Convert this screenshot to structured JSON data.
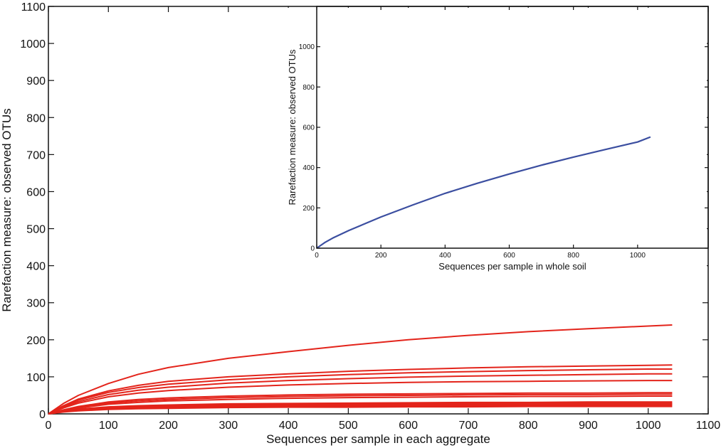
{
  "chart_data": [
    {
      "type": "line",
      "xlabel": "Sequences per sample in each aggregate",
      "ylabel": "Rarefaction measure: observed OTUs",
      "xlim": [
        0,
        1100
      ],
      "ylim": [
        0,
        1100
      ],
      "xticks": [
        0,
        100,
        200,
        300,
        400,
        500,
        600,
        700,
        800,
        900,
        1000,
        1100
      ],
      "yticks": [
        0,
        100,
        200,
        300,
        400,
        500,
        600,
        700,
        800,
        900,
        1000,
        1100
      ],
      "color": "#e3241b",
      "x": [
        0,
        25,
        50,
        100,
        150,
        200,
        300,
        400,
        500,
        600,
        700,
        800,
        900,
        1000,
        1040
      ],
      "series": [
        {
          "values": [
            0,
            28,
            50,
            82,
            107,
            125,
            150,
            168,
            185,
            200,
            212,
            222,
            230,
            237,
            240
          ]
        },
        {
          "values": [
            0,
            22,
            40,
            62,
            77,
            88,
            100,
            108,
            115,
            120,
            124,
            127,
            129,
            131,
            132
          ]
        },
        {
          "values": [
            0,
            20,
            37,
            58,
            71,
            80,
            92,
            100,
            106,
            111,
            114,
            117,
            119,
            121,
            121
          ]
        },
        {
          "values": [
            0,
            18,
            33,
            52,
            64,
            72,
            83,
            90,
            95,
            99,
            102,
            104,
            106,
            108,
            108
          ]
        },
        {
          "values": [
            0,
            16,
            29,
            46,
            56,
            63,
            72,
            78,
            82,
            85,
            87,
            88,
            89,
            90,
            90
          ]
        },
        {
          "values": [
            0,
            11,
            20,
            32,
            39,
            43,
            48,
            51,
            53,
            54,
            55,
            56,
            56,
            57,
            57
          ]
        },
        {
          "values": [
            0,
            10,
            18,
            29,
            35,
            39,
            44,
            47,
            49,
            50,
            51,
            52,
            52,
            53,
            53
          ]
        },
        {
          "values": [
            0,
            9,
            16,
            26,
            31,
            35,
            39,
            42,
            44,
            45,
            46,
            47,
            47,
            48,
            48
          ]
        },
        {
          "values": [
            0,
            8,
            13,
            19,
            22,
            24,
            27,
            28,
            29,
            30,
            31,
            31,
            32,
            32,
            32
          ]
        },
        {
          "values": [
            0,
            7,
            12,
            17,
            20,
            22,
            25,
            26,
            27,
            28,
            28,
            29,
            29,
            29,
            29
          ]
        },
        {
          "values": [
            0,
            7,
            11,
            16,
            19,
            21,
            23,
            24,
            25,
            26,
            26,
            27,
            27,
            27,
            27
          ]
        },
        {
          "values": [
            0,
            6,
            10,
            15,
            17,
            19,
            21,
            22,
            23,
            24,
            24,
            25,
            25,
            25,
            25
          ]
        },
        {
          "values": [
            0,
            6,
            9,
            13,
            15,
            17,
            19,
            20,
            21,
            21,
            22,
            22,
            22,
            22,
            22
          ]
        },
        {
          "values": [
            0,
            5,
            8,
            12,
            14,
            15,
            17,
            18,
            18,
            19,
            19,
            20,
            20,
            20,
            20
          ]
        }
      ]
    },
    {
      "type": "line",
      "xlabel": "Sequences per sample in whole soil",
      "ylabel": "Rarefaction measure: observed OTUs",
      "xlim": [
        0,
        1220
      ],
      "ylim": [
        0,
        1200
      ],
      "xticks": [
        0,
        200,
        400,
        600,
        800,
        1000
      ],
      "yticks": [
        0,
        200,
        400,
        600,
        800,
        1000
      ],
      "color": "#3b4ea0",
      "x": [
        0,
        25,
        50,
        100,
        200,
        300,
        400,
        500,
        600,
        700,
        800,
        900,
        1000,
        1040
      ],
      "series": [
        {
          "values": [
            0,
            28,
            50,
            88,
            155,
            215,
            272,
            322,
            368,
            412,
            452,
            490,
            527,
            552
          ]
        }
      ]
    }
  ]
}
